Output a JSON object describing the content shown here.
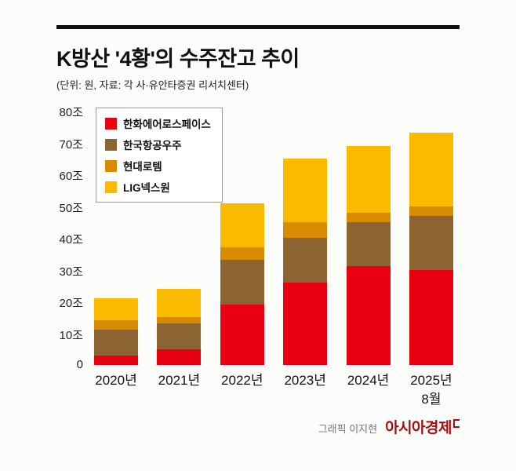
{
  "header": {
    "title": "K방산 '4황'의 수주잔고 추이",
    "subtitle": "(단위: 원, 자료: 각 사·유안타증권 리서치센터)"
  },
  "chart_data": {
    "type": "bar",
    "stacked": true,
    "title": "K방산 '4황'의 수주잔고 추이",
    "unit": "조 원",
    "categories": [
      "2020년",
      "2021년",
      "2022년",
      "2023년",
      "2024년",
      "2025년 8월"
    ],
    "series": [
      {
        "name": "한화에어로스페이스",
        "color": "#e60012",
        "values": [
          3,
          5,
          19,
          26,
          31,
          30
        ]
      },
      {
        "name": "한국항공우주",
        "color": "#8c6432",
        "values": [
          8,
          8,
          14,
          14,
          14,
          17
        ]
      },
      {
        "name": "현대로템",
        "color": "#d98b00",
        "values": [
          3,
          2,
          4,
          5,
          3,
          3
        ]
      },
      {
        "name": "LIG넥스원",
        "color": "#f9ba00",
        "values": [
          7,
          9,
          14,
          20,
          21,
          23
        ]
      }
    ],
    "totals": [
      21,
      24,
      51,
      65,
      69,
      73
    ],
    "y_ticks": [
      "80조",
      "70조",
      "60조",
      "50조",
      "40조",
      "30조",
      "20조",
      "10조",
      "0"
    ],
    "ylim": [
      0,
      80
    ],
    "grid": false,
    "legend_position": "top-left"
  },
  "footer": {
    "credit": "그래픽 이지현",
    "brand": "아시아경제"
  }
}
